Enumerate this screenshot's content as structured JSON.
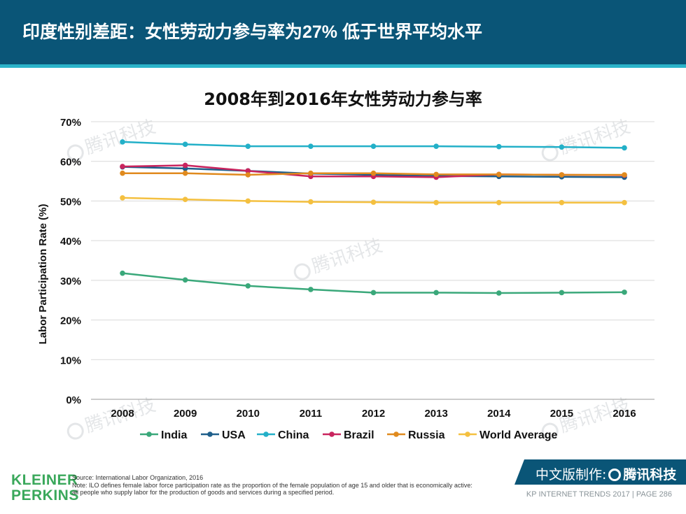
{
  "header": {
    "title": "印度性别差距：女性劳动力参与率为27% 低于世界平均水平"
  },
  "colors": {
    "header_bg": "#0a5577",
    "stripe": "#2bb3c9",
    "logo": "#3aa85b"
  },
  "watermark": {
    "text": "腾讯科技"
  },
  "chart_data": {
    "type": "line",
    "title": "2008年到2016年女性劳动力参与率",
    "xlabel": "",
    "ylabel": "Labor Participation Rate (%)",
    "x": [
      "2008",
      "2009",
      "2010",
      "2011",
      "2012",
      "2013",
      "2014",
      "2015",
      "2016"
    ],
    "ylim": [
      0,
      70
    ],
    "yticks": [
      0,
      10,
      20,
      30,
      40,
      50,
      60,
      70
    ],
    "ytick_labels": [
      "0%",
      "10%",
      "20%",
      "30%",
      "40%",
      "50%",
      "60%",
      "70%"
    ],
    "grid": true,
    "legend_position": "bottom",
    "series": [
      {
        "name": "India",
        "color": "#3aa87a",
        "values": [
          31.8,
          30.1,
          28.6,
          27.7,
          26.9,
          26.9,
          26.8,
          26.9,
          27.0
        ]
      },
      {
        "name": "USA",
        "color": "#1f5f8b",
        "values": [
          58.6,
          58.2,
          57.6,
          56.9,
          56.6,
          56.3,
          56.2,
          56.1,
          56.0
        ]
      },
      {
        "name": "China",
        "color": "#23b0c8",
        "values": [
          64.9,
          64.3,
          63.8,
          63.8,
          63.8,
          63.8,
          63.7,
          63.6,
          63.4
        ]
      },
      {
        "name": "Brazil",
        "color": "#c9245e",
        "values": [
          58.7,
          59.0,
          57.6,
          56.2,
          56.2,
          56.0,
          56.7,
          56.6,
          56.5
        ]
      },
      {
        "name": "Russia",
        "color": "#e08a1e",
        "values": [
          57.0,
          57.0,
          56.6,
          57.0,
          57.0,
          56.7,
          56.7,
          56.6,
          56.6
        ]
      },
      {
        "name": "World Average",
        "color": "#f4c040",
        "values": [
          50.8,
          50.4,
          50.0,
          49.8,
          49.7,
          49.6,
          49.6,
          49.6,
          49.6
        ]
      }
    ]
  },
  "footer": {
    "source": "Source: International Labor Organization, 2016",
    "note_line1": "Note: ILO defines female labor force participation rate as the proportion of the female population of age 15 and older that is economically active:",
    "note_line2": "all people who supply labor for the production of goods and services during a specified period.",
    "logo_line1": "KLEINER",
    "logo_line2": "PERKINS",
    "banner_prefix": "中文版制作:",
    "banner_brand": "腾讯科技",
    "page_label": "KP INTERNET TRENDS 2017  |  PAGE 286"
  }
}
